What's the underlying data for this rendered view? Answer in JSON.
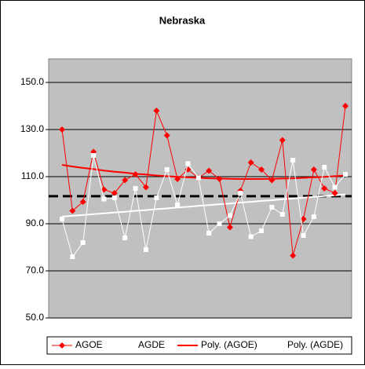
{
  "chart_data": {
    "type": "line",
    "title": "Nebraska",
    "categories": [
      null,
      null,
      null,
      null,
      null,
      null,
      null,
      null,
      null,
      null,
      null,
      null,
      null,
      null,
      null,
      null,
      null,
      null,
      null,
      null,
      null,
      null,
      null,
      null,
      null,
      null,
      null,
      null
    ],
    "series": [
      {
        "name": "AGOE",
        "color": "#ff0000",
        "marker": "diamond",
        "values": [
          130,
          95.5,
          99.3,
          120.5,
          104.5,
          103,
          108.5,
          111,
          105.5,
          138,
          127.5,
          109,
          113,
          109.5,
          112.5,
          109,
          88.5,
          104,
          116,
          113,
          108.5,
          125.5,
          76.5,
          92,
          113,
          105,
          103,
          140
        ]
      },
      {
        "name": "AGDE",
        "color": "#ffffff",
        "marker": "square",
        "values": [
          92,
          76,
          82,
          119,
          100.5,
          101,
          84,
          105,
          79,
          101,
          113,
          98,
          115.5,
          109.5,
          86,
          90,
          93.5,
          103,
          84.5,
          87,
          97,
          94,
          117,
          85,
          93,
          114,
          105.5,
          111
        ]
      },
      {
        "name": "Poly. (AGOE)",
        "color": "#ff0000",
        "marker": "none",
        "values": [
          115.0,
          114.3,
          113.7,
          113.2,
          112.6,
          112.1,
          111.7,
          111.2,
          110.9,
          110.5,
          110.2,
          109.9,
          109.7,
          109.5,
          109.3,
          109.2,
          109.1,
          109.0,
          109.0,
          109.0,
          109.1,
          109.2,
          109.3,
          109.5,
          109.7,
          109.9,
          110.2,
          110.5
        ]
      },
      {
        "name": "Poly. (AGDE)",
        "color": "#ffffff",
        "marker": "none",
        "values": [
          93.0,
          93.4,
          93.7,
          94.1,
          94.4,
          94.8,
          95.1,
          95.5,
          95.8,
          96.2,
          96.5,
          96.9,
          97.2,
          97.6,
          97.9,
          98.3,
          98.6,
          99.0,
          99.3,
          99.7,
          100.0,
          100.4,
          100.7,
          101.1,
          101.4,
          101.8,
          102.1,
          102.5
        ]
      }
    ],
    "reference_line": 101.7,
    "ylim": [
      50,
      160
    ],
    "yticks": [
      {
        "value": 50,
        "label": "50.0"
      },
      {
        "value": 70,
        "label": "70.0"
      },
      {
        "value": 90,
        "label": "90.0"
      },
      {
        "value": 110,
        "label": "110.0"
      },
      {
        "value": 130,
        "label": "130.0"
      },
      {
        "value": 150,
        "label": "150.0"
      }
    ],
    "grid": true,
    "plot_background": "#c0c0c0",
    "legend": "bottom"
  }
}
